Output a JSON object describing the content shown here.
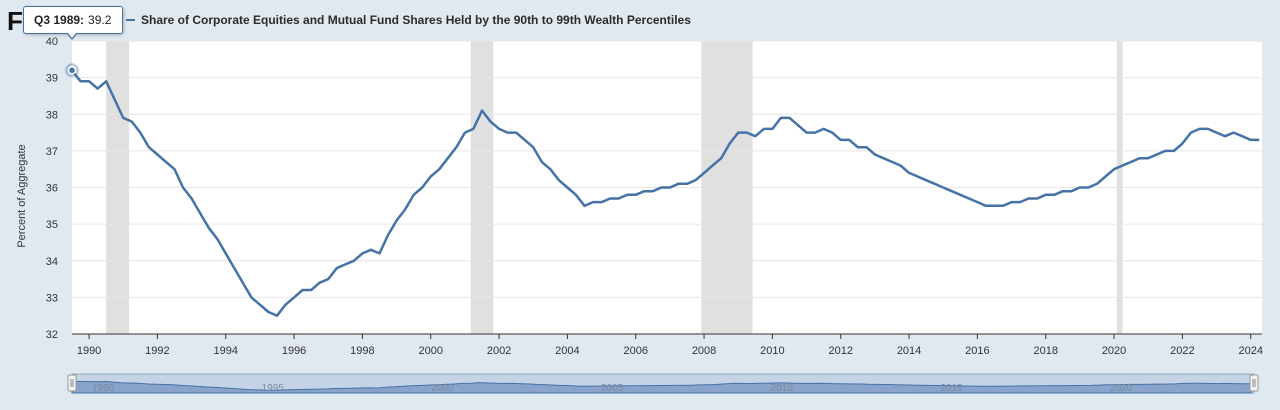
{
  "logo": {
    "letter": "F"
  },
  "tooltip": {
    "period": "Q3 1989:",
    "value": "39.2"
  },
  "chart_data": {
    "type": "line",
    "title": "Share of Corporate Equities and Mutual Fund Shares Held by the 90th to 99th Wealth Percentiles",
    "xlabel": "",
    "ylabel": "Percent of Aggregate",
    "xlim": [
      1989.5,
      2024.33
    ],
    "ylim": [
      32,
      40
    ],
    "y_ticks": [
      32,
      33,
      34,
      35,
      36,
      37,
      38,
      39,
      40
    ],
    "x_ticks": [
      1990,
      1992,
      1994,
      1996,
      1998,
      2000,
      2002,
      2004,
      2006,
      2008,
      2010,
      2012,
      2014,
      2016,
      2018,
      2020,
      2022,
      2024
    ],
    "grid": true,
    "legend_position": "top-left",
    "line_color": "#4572a7",
    "recessions": [
      [
        1990.5,
        1991.17
      ],
      [
        2001.17,
        2001.83
      ],
      [
        2007.92,
        2009.42
      ],
      [
        2020.08,
        2020.25
      ]
    ],
    "series": [
      {
        "name": "Share of Corporate Equities and Mutual Fund Shares Held by the 90th to 99th Wealth Percentiles",
        "x": [
          1989.5,
          1989.75,
          1990.0,
          1990.25,
          1990.5,
          1990.75,
          1991.0,
          1991.25,
          1991.5,
          1991.75,
          1992.0,
          1992.25,
          1992.5,
          1992.75,
          1993.0,
          1993.25,
          1993.5,
          1993.75,
          1994.0,
          1994.25,
          1994.5,
          1994.75,
          1995.0,
          1995.25,
          1995.5,
          1995.75,
          1996.0,
          1996.25,
          1996.5,
          1996.75,
          1997.0,
          1997.25,
          1997.5,
          1997.75,
          1998.0,
          1998.25,
          1998.5,
          1998.75,
          1999.0,
          1999.25,
          1999.5,
          1999.75,
          2000.0,
          2000.25,
          2000.5,
          2000.75,
          2001.0,
          2001.25,
          2001.5,
          2001.75,
          2002.0,
          2002.25,
          2002.5,
          2002.75,
          2003.0,
          2003.25,
          2003.5,
          2003.75,
          2004.0,
          2004.25,
          2004.5,
          2004.75,
          2005.0,
          2005.25,
          2005.5,
          2005.75,
          2006.0,
          2006.25,
          2006.5,
          2006.75,
          2007.0,
          2007.25,
          2007.5,
          2007.75,
          2008.0,
          2008.25,
          2008.5,
          2008.75,
          2009.0,
          2009.25,
          2009.5,
          2009.75,
          2010.0,
          2010.25,
          2010.5,
          2010.75,
          2011.0,
          2011.25,
          2011.5,
          2011.75,
          2012.0,
          2012.25,
          2012.5,
          2012.75,
          2013.0,
          2013.25,
          2013.5,
          2013.75,
          2014.0,
          2014.25,
          2014.5,
          2014.75,
          2015.0,
          2015.25,
          2015.5,
          2015.75,
          2016.0,
          2016.25,
          2016.5,
          2016.75,
          2017.0,
          2017.25,
          2017.5,
          2017.75,
          2018.0,
          2018.25,
          2018.5,
          2018.75,
          2019.0,
          2019.25,
          2019.5,
          2019.75,
          2020.0,
          2020.25,
          2020.5,
          2020.75,
          2021.0,
          2021.25,
          2021.5,
          2021.75,
          2022.0,
          2022.25,
          2022.5,
          2022.75,
          2023.0,
          2023.25,
          2023.5,
          2023.75,
          2024.0,
          2024.25
        ],
        "y": [
          39.2,
          38.9,
          38.9,
          38.7,
          38.9,
          38.4,
          37.9,
          37.8,
          37.5,
          37.1,
          36.9,
          36.7,
          36.5,
          36.0,
          35.7,
          35.3,
          34.9,
          34.6,
          34.2,
          33.8,
          33.4,
          33.0,
          32.8,
          32.6,
          32.5,
          32.8,
          33.0,
          33.2,
          33.2,
          33.4,
          33.5,
          33.8,
          33.9,
          34.0,
          34.2,
          34.3,
          34.2,
          34.7,
          35.1,
          35.4,
          35.8,
          36.0,
          36.3,
          36.5,
          36.8,
          37.1,
          37.5,
          37.6,
          38.1,
          37.8,
          37.6,
          37.5,
          37.5,
          37.3,
          37.1,
          36.7,
          36.5,
          36.2,
          36.0,
          35.8,
          35.5,
          35.6,
          35.6,
          35.7,
          35.7,
          35.8,
          35.8,
          35.9,
          35.9,
          36.0,
          36.0,
          36.1,
          36.1,
          36.2,
          36.4,
          36.6,
          36.8,
          37.2,
          37.5,
          37.5,
          37.4,
          37.6,
          37.6,
          37.9,
          37.9,
          37.7,
          37.5,
          37.5,
          37.6,
          37.5,
          37.3,
          37.3,
          37.1,
          37.1,
          36.9,
          36.8,
          36.7,
          36.6,
          36.4,
          36.3,
          36.2,
          36.1,
          36.0,
          35.9,
          35.8,
          35.7,
          35.6,
          35.5,
          35.5,
          35.5,
          35.6,
          35.6,
          35.7,
          35.7,
          35.8,
          35.8,
          35.9,
          35.9,
          36.0,
          36.0,
          36.1,
          36.3,
          36.5,
          36.6,
          36.7,
          36.8,
          36.8,
          36.9,
          37.0,
          37.0,
          37.2,
          37.5,
          37.6,
          37.6,
          37.5,
          37.4,
          37.5,
          37.4,
          37.3,
          37.3
        ]
      }
    ]
  }
}
